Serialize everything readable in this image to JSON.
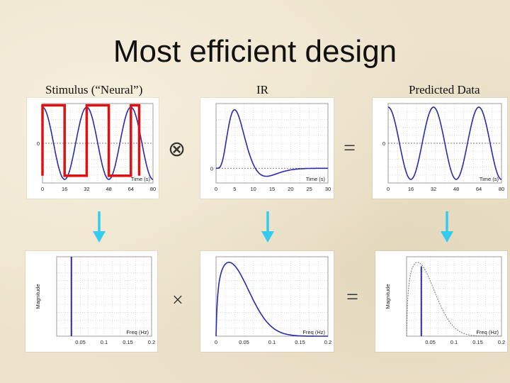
{
  "title": "Most efficient design",
  "columns": {
    "stimulus": "Stimulus (“Neural”)",
    "ir": "IR",
    "predicted": "Predicted Data"
  },
  "operators": {
    "convolve": "⊗",
    "equals_top": "=",
    "multiply": "×",
    "equals_bottom": "="
  },
  "colors": {
    "signal": "#2a2aaa",
    "stimulus_box": "#dd1111",
    "arrow": "#33ccee",
    "grid": "#c8c8c8"
  },
  "chart_data": [
    {
      "id": "stimulus-time",
      "type": "line",
      "xlabel": "Time (s)",
      "x_ticks": [
        "0",
        "16",
        "32",
        "48",
        "64",
        "80"
      ],
      "y_ticks": [
        "0"
      ],
      "xlim": [
        0,
        80
      ],
      "ylim": [
        -1.1,
        1.1
      ],
      "series": [
        {
          "kind": "sine",
          "period": 32,
          "amplitude": 1,
          "color": "#2a2aaa"
        },
        {
          "kind": "square",
          "period": 32,
          "high": 1.05,
          "low": -0.9,
          "start": 0,
          "end": 70,
          "color": "#dd1111"
        }
      ]
    },
    {
      "id": "ir-time",
      "type": "line",
      "xlabel": "Time (s)",
      "x_ticks": [
        "0",
        "5",
        "10",
        "15",
        "20",
        "25",
        "30"
      ],
      "y_ticks": [
        "0"
      ],
      "xlim": [
        0,
        30
      ],
      "ylim": [
        -0.25,
        1.1
      ],
      "series": [
        {
          "kind": "hrf",
          "peak": 5,
          "undershoot": 12,
          "color": "#2a2aaa"
        }
      ]
    },
    {
      "id": "predicted-time",
      "type": "line",
      "xlabel": "Time (s)",
      "x_ticks": [
        "0",
        "16",
        "32",
        "48",
        "64",
        "80"
      ],
      "y_ticks": [
        "0"
      ],
      "xlim": [
        0,
        80
      ],
      "ylim": [
        -1.1,
        1.1
      ],
      "series": [
        {
          "kind": "sine",
          "period": 32,
          "amplitude": 1,
          "color": "#2a2aaa"
        }
      ]
    },
    {
      "id": "stimulus-freq",
      "type": "line",
      "xlabel": "Freq (Hz)",
      "ylabel": "Magnitude",
      "x_ticks": [
        "0.05",
        "0.1",
        "0.15",
        "0.2"
      ],
      "xlim": [
        0,
        0.2
      ],
      "ylim": [
        0,
        1
      ],
      "series": [
        {
          "kind": "spike",
          "x": 0.031,
          "height": 1,
          "color": "#2a2aaa"
        }
      ]
    },
    {
      "id": "ir-freq",
      "type": "line",
      "xlabel": "Freq (Hz)",
      "x_ticks": [
        "0",
        "0.05",
        "0.1",
        "0.15",
        "0.2"
      ],
      "xlim": [
        0,
        0.2
      ],
      "ylim": [
        0,
        1
      ],
      "series": [
        {
          "kind": "hrf_spectrum",
          "peak": 0.015,
          "color": "#2a2aaa"
        }
      ]
    },
    {
      "id": "predicted-freq",
      "type": "line",
      "xlabel": "Freq (Hz)",
      "ylabel": "Magnitude",
      "x_ticks": [
        "0.05",
        "0.1",
        "0.15",
        "0.2"
      ],
      "xlim": [
        0,
        0.2
      ],
      "ylim": [
        0,
        1
      ],
      "series": [
        {
          "kind": "spike",
          "x": 0.031,
          "height": 0.88,
          "color": "#2a2aaa"
        },
        {
          "kind": "hrf_spectrum",
          "peak": 0.015,
          "color": "#777777",
          "dashed": true
        }
      ]
    }
  ]
}
